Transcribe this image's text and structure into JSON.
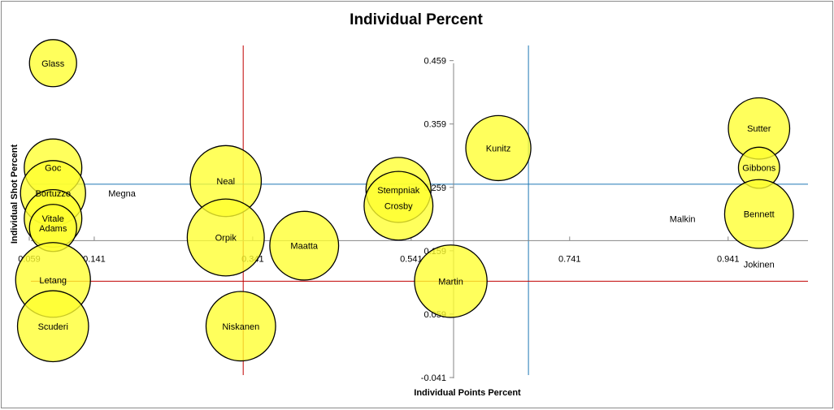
{
  "chart_data": {
    "type": "bubble",
    "title": "Individual Percent",
    "xlabel": "Individual Points Percent",
    "ylabel": "Individual Shot Percent",
    "xlim": [
      0.059,
      1.05
    ],
    "ylim": [
      -0.041,
      0.497
    ],
    "xticks": [
      "0.059",
      "0.141",
      "0.341",
      "0.541",
      "0.741",
      "0.941"
    ],
    "yticks": [
      "-0.041",
      "0.059",
      "0.159",
      "0.259",
      "0.359",
      "0.459"
    ],
    "xtick_values": [
      0.059,
      0.141,
      0.341,
      0.541,
      0.741,
      0.941
    ],
    "ytick_values": [
      -0.041,
      0.059,
      0.159,
      0.259,
      0.359,
      0.459
    ],
    "axis_crossing": {
      "x": 0.059,
      "y": 0.175
    },
    "reference_lines": [
      {
        "orientation": "vertical",
        "value": 0.329,
        "color": "#c00000"
      },
      {
        "orientation": "vertical",
        "value": 0.689,
        "color": "#1f78b4"
      },
      {
        "orientation": "horizontal",
        "value": 0.111,
        "color": "#c00000"
      },
      {
        "orientation": "horizontal",
        "value": 0.264,
        "color": "#1f78b4"
      }
    ],
    "series": [
      {
        "name": "Glass",
        "x": 0.089,
        "y": 0.455,
        "size": 0.63
      },
      {
        "name": "Goc",
        "x": 0.089,
        "y": 0.29,
        "size": 0.77
      },
      {
        "name": "Bortuzzo",
        "x": 0.089,
        "y": 0.25,
        "size": 0.87
      },
      {
        "name": "Vitale",
        "x": 0.089,
        "y": 0.21,
        "size": 0.77
      },
      {
        "name": "Adams",
        "x": 0.089,
        "y": 0.195,
        "size": 0.63
      },
      {
        "name": "Letang",
        "x": 0.089,
        "y": 0.113,
        "size": 1.0
      },
      {
        "name": "Scuderi",
        "x": 0.089,
        "y": 0.04,
        "size": 0.95
      },
      {
        "name": "Megna",
        "x": 0.089,
        "y": 0.25,
        "size": 0.0
      },
      {
        "name": "Neal",
        "x": 0.307,
        "y": 0.269,
        "size": 0.95
      },
      {
        "name": "Orpik",
        "x": 0.307,
        "y": 0.18,
        "size": 1.03
      },
      {
        "name": "Niskanen",
        "x": 0.326,
        "y": 0.04,
        "size": 0.93
      },
      {
        "name": "Maatta",
        "x": 0.406,
        "y": 0.167,
        "size": 0.92
      },
      {
        "name": "Stempniak",
        "x": 0.525,
        "y": 0.255,
        "size": 0.87
      },
      {
        "name": "Crosby",
        "x": 0.525,
        "y": 0.23,
        "size": 0.92
      },
      {
        "name": "Martin",
        "x": 0.591,
        "y": 0.111,
        "size": 0.97
      },
      {
        "name": "Kunitz",
        "x": 0.651,
        "y": 0.321,
        "size": 0.87
      },
      {
        "name": "Sutter",
        "x": 0.98,
        "y": 0.352,
        "size": 0.82
      },
      {
        "name": "Gibbons",
        "x": 0.98,
        "y": 0.29,
        "size": 0.55
      },
      {
        "name": "Bennett",
        "x": 0.98,
        "y": 0.217,
        "size": 0.92
      },
      {
        "name": "Malkin",
        "x": 0.98,
        "y": 0.217,
        "size": 0.0
      },
      {
        "name": "Jokinen",
        "x": 0.98,
        "y": 0.217,
        "size": 0.0
      }
    ]
  }
}
